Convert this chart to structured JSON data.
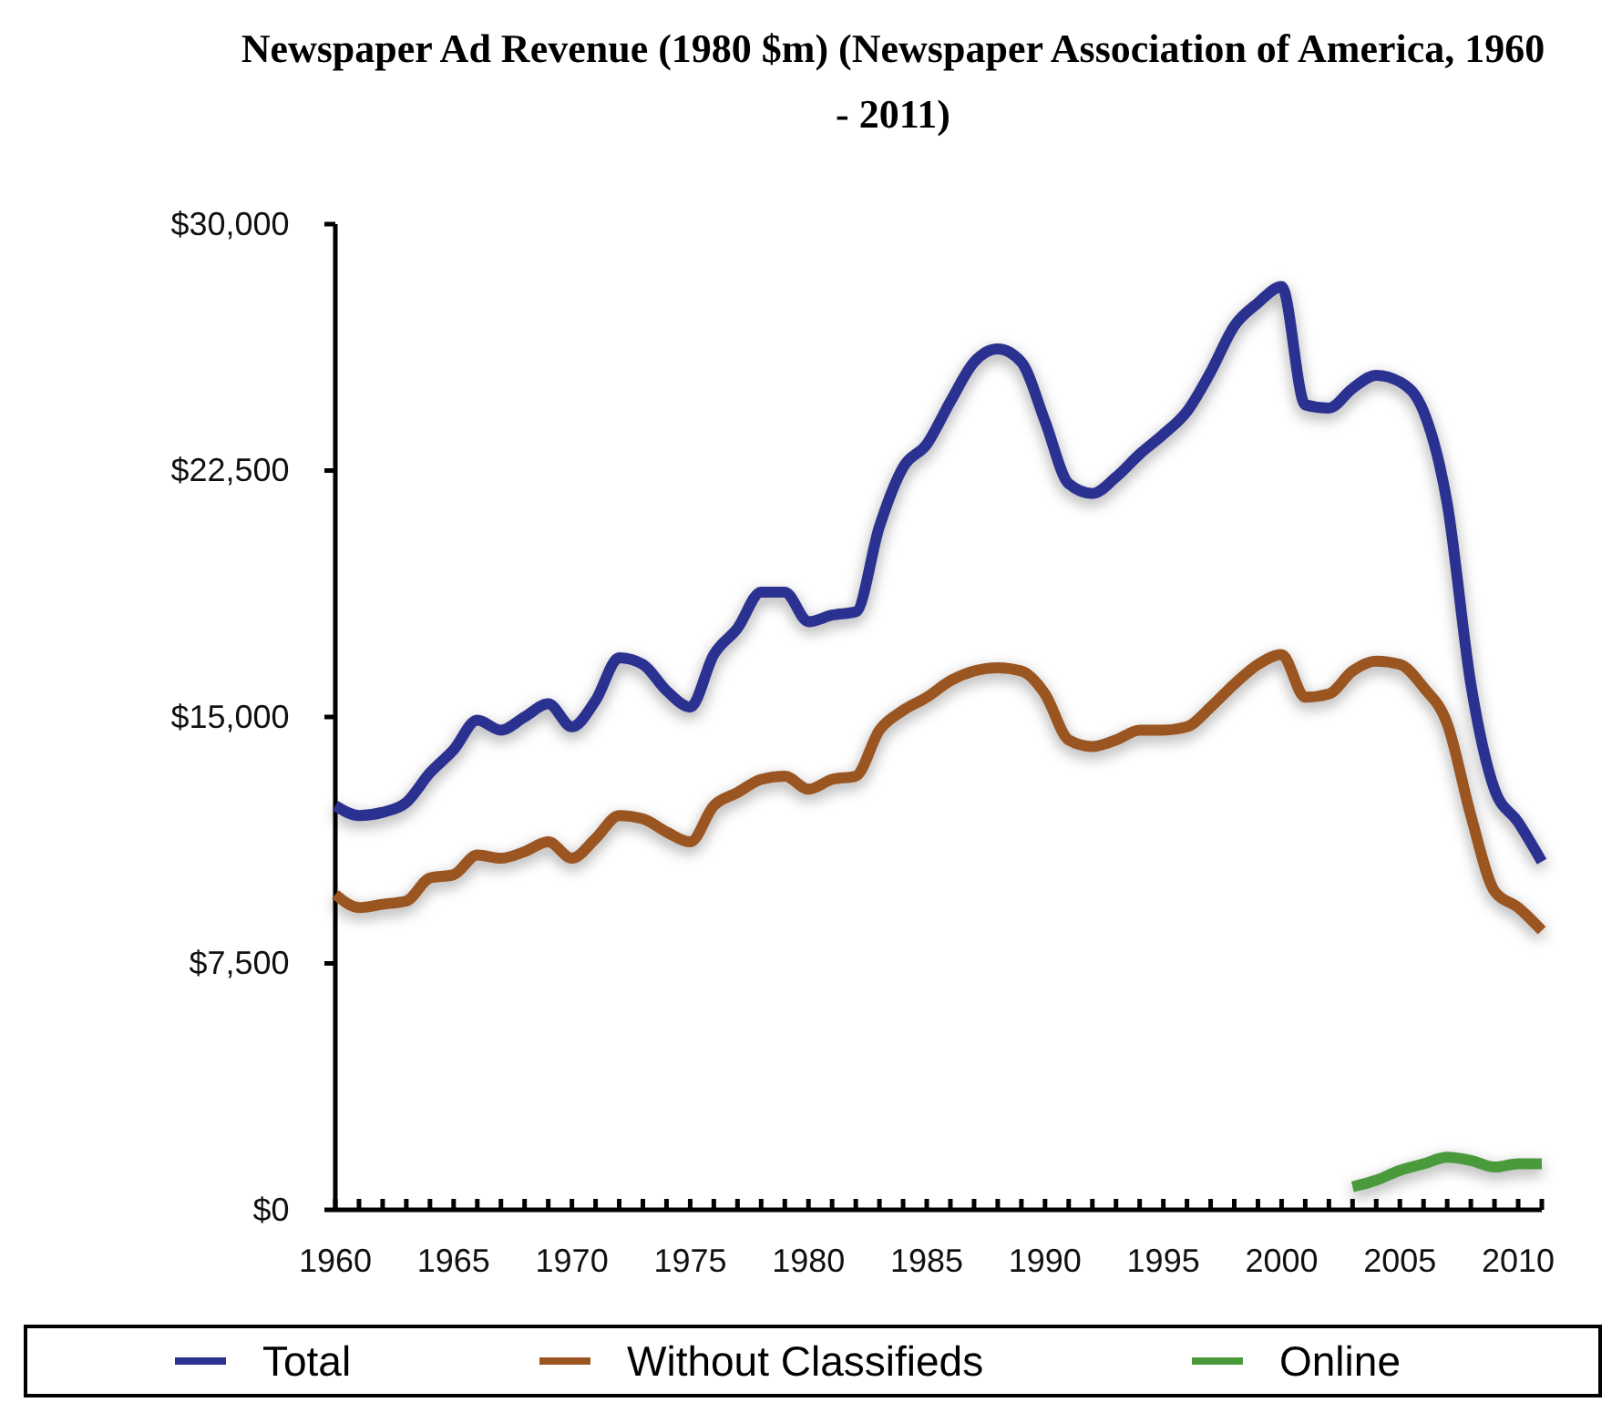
{
  "chart_data": {
    "type": "line",
    "title": "Newspaper Ad Revenue (1980 $m) (Newspaper Association of America, 1960 - 2011)",
    "xlim": [
      1960,
      2011
    ],
    "xticks": [
      1960,
      {
        "value": 1961,
        "label": null
      },
      {
        "value": 1962,
        "label": null
      },
      {
        "value": 1963,
        "label": null
      },
      {
        "value": 1964,
        "label": null
      },
      1965,
      {
        "value": 1966,
        "label": null
      },
      {
        "value": 1967,
        "label": null
      },
      {
        "value": 1968,
        "label": null
      },
      {
        "value": 1969,
        "label": null
      },
      1970,
      {
        "value": 1971,
        "label": null
      },
      {
        "value": 1972,
        "label": null
      },
      {
        "value": 1973,
        "label": null
      },
      {
        "value": 1974,
        "label": null
      },
      1975,
      {
        "value": 1976,
        "label": null
      },
      {
        "value": 1977,
        "label": null
      },
      {
        "value": 1978,
        "label": null
      },
      {
        "value": 1979,
        "label": null
      },
      1980,
      {
        "value": 1981,
        "label": null
      },
      {
        "value": 1982,
        "label": null
      },
      {
        "value": 1983,
        "label": null
      },
      {
        "value": 1984,
        "label": null
      },
      1985,
      {
        "value": 1986,
        "label": null
      },
      {
        "value": 1987,
        "label": null
      },
      {
        "value": 1988,
        "label": null
      },
      {
        "value": 1989,
        "label": null
      },
      1990,
      {
        "value": 1991,
        "label": null
      },
      {
        "value": 1992,
        "label": null
      },
      {
        "value": 1993,
        "label": null
      },
      {
        "value": 1994,
        "label": null
      },
      1995,
      {
        "value": 1996,
        "label": null
      },
      {
        "value": 1997,
        "label": null
      },
      {
        "value": 1998,
        "label": null
      },
      {
        "value": 1999,
        "label": null
      },
      2000,
      {
        "value": 2001,
        "label": null
      },
      {
        "value": 2002,
        "label": null
      },
      {
        "value": 2003,
        "label": null
      },
      {
        "value": 2004,
        "label": null
      },
      2005,
      {
        "value": 2006,
        "label": null
      },
      {
        "value": 2007,
        "label": null
      },
      {
        "value": 2008,
        "label": null
      },
      {
        "value": 2009,
        "label": null
      },
      2010,
      {
        "value": 2011,
        "label": null
      }
    ],
    "ylim": [
      0,
      30000
    ],
    "yticks": [
      {
        "value": 0,
        "label": "$0"
      },
      {
        "value": 7500,
        "label": "$7,500"
      },
      {
        "value": 15000,
        "label": "$15,000"
      },
      {
        "value": 22500,
        "label": "$22,500"
      },
      {
        "value": 30000,
        "label": "$30,000"
      }
    ],
    "x": [
      1960,
      1961,
      1962,
      1963,
      1964,
      1965,
      1966,
      1967,
      1968,
      1969,
      1970,
      1971,
      1972,
      1973,
      1974,
      1975,
      1976,
      1977,
      1978,
      1979,
      1980,
      1981,
      1982,
      1983,
      1984,
      1985,
      1986,
      1987,
      1988,
      1989,
      1990,
      1991,
      1992,
      1993,
      1994,
      1995,
      1996,
      1997,
      1998,
      1999,
      2000,
      2001,
      2002,
      2003,
      2004,
      2005,
      2006,
      2007,
      2008,
      2009,
      2010,
      2011
    ],
    "legend": "bottom",
    "grid": false,
    "marker": "none",
    "line_style": "solid",
    "series": [
      {
        "name": "Total",
        "color": "#2b3190",
        "values": [
          12300,
          12000,
          12100,
          12400,
          13300,
          14000,
          14900,
          14600,
          15000,
          15400,
          14700,
          15500,
          16800,
          16600,
          15800,
          15300,
          16900,
          17700,
          18800,
          18800,
          17900,
          18100,
          18200,
          20800,
          22600,
          23300,
          24600,
          25800,
          26200,
          25800,
          24000,
          22100,
          21800,
          22300,
          23000,
          23600,
          24300,
          25500,
          26900,
          27600,
          28100,
          24500,
          24400,
          25000,
          25400,
          25200,
          24300,
          21500,
          16000,
          12800,
          11800,
          10600
        ]
      },
      {
        "name": "Without Classifieds",
        "color": "#9a5520",
        "values": [
          9600,
          9200,
          9300,
          9400,
          10100,
          10200,
          10800,
          10700,
          10900,
          11200,
          10700,
          11300,
          12000,
          11900,
          11500,
          11200,
          12300,
          12700,
          13100,
          13200,
          12800,
          13100,
          13200,
          14600,
          15200,
          15600,
          16100,
          16400,
          16500,
          16400,
          15700,
          14300,
          14100,
          14300,
          14600,
          14600,
          14700,
          15300,
          16000,
          16600,
          16900,
          15600,
          15700,
          16400,
          16700,
          16600,
          15900,
          14800,
          12000,
          9700,
          9200,
          8500
        ]
      },
      {
        "name": "Online",
        "color": "#4a9a3c",
        "x": [
          2003,
          2004,
          2005,
          2006,
          2007,
          2008,
          2009,
          2010,
          2011
        ],
        "values": [
          700,
          900,
          1200,
          1400,
          1600,
          1500,
          1300,
          1400,
          1400
        ]
      }
    ]
  }
}
